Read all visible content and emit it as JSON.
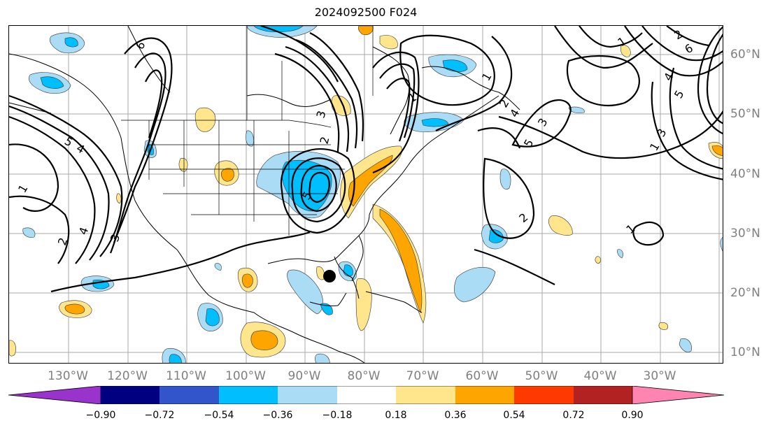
{
  "title": "2024092500 F024",
  "lon_labels": [
    "130°W",
    "120°W",
    "110°W",
    "100°W",
    "90°W",
    "80°W",
    "70°W",
    "60°W",
    "50°W",
    "40°W",
    "30°W"
  ],
  "lat_labels": [
    "60°N",
    "50°N",
    "40°N",
    "30°N",
    "20°N",
    "10°N"
  ],
  "colorbar": {
    "ticks": [
      "−0.90",
      "−0.72",
      "−0.54",
      "−0.36",
      "−0.18",
      "0.18",
      "0.36",
      "0.54",
      "0.72",
      "0.90"
    ],
    "colors": [
      "#9933cc",
      "#000080",
      "#3355cc",
      "#00bfff",
      "#aadcf5",
      "#ffffff",
      "#ffe68c",
      "#ffa500",
      "#ff3a00",
      "#b22222",
      "#ff85b0"
    ]
  },
  "contour_labels": [
    "1",
    "2",
    "3",
    "4",
    "5",
    "6"
  ],
  "marker": "storm-center-dot"
}
